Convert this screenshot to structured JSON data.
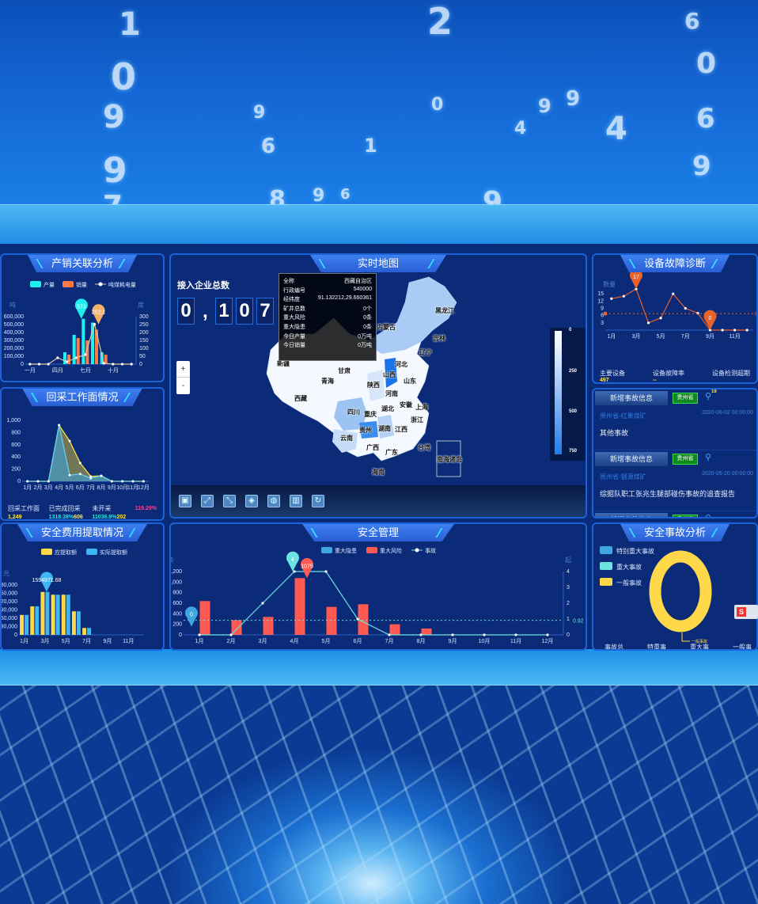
{
  "background_digits": [
    "1",
    "0",
    "9",
    "9",
    "7",
    "9",
    "6",
    "2",
    "0",
    "9",
    "9",
    "4",
    "0",
    "6",
    "9",
    "4",
    "1",
    "9",
    "8",
    "6",
    "9",
    "6",
    "7"
  ],
  "colors": {
    "panel_bg": "#0b2a78",
    "panel_border": "#1b63d6",
    "title_bg": "#3d7ff0",
    "accent_cyan": "#1ef0f0",
    "accent_orange": "#ff7a45",
    "yellow": "#ffd84a",
    "sky": "#3fb6f2",
    "red": "#ff5a52",
    "teal": "#6be3e0",
    "line_orange": "#e8622a"
  },
  "production_sales": {
    "title": "产销关联分析",
    "chart_data": {
      "type": "bar+line",
      "categories": [
        "一月",
        "二月",
        "三月",
        "四月",
        "五月",
        "六月",
        "七月",
        "八月",
        "九月",
        "十月",
        "十一月",
        "十二月"
      ],
      "tick_labels": [
        "一月",
        "",
        "",
        "四月",
        "",
        "",
        "七月",
        "",
        "",
        "十月",
        "",
        ""
      ],
      "ylabel": "吨",
      "y2label": "度",
      "ylim": [
        0,
        600000
      ],
      "y2lim": [
        0,
        300
      ],
      "yticks": [
        0,
        100000,
        200000,
        300000,
        400000,
        500000,
        600000
      ],
      "y2ticks": [
        0,
        50,
        100,
        150,
        200,
        250,
        300
      ],
      "bar_series": [
        {
          "name": "产量",
          "color": "#1ef0f0",
          "values": [
            0,
            0,
            0,
            0,
            150000,
            370000,
            573000,
            525000,
            150000,
            0,
            0,
            0
          ]
        },
        {
          "name": "销量",
          "color": "#ff7a45",
          "values": [
            0,
            0,
            0,
            0,
            120000,
            330000,
            300000,
            435000,
            120000,
            0,
            0,
            0
          ]
        }
      ],
      "line_series": [
        {
          "name": "吨煤耗电量",
          "color": "#e0c9a0",
          "axis": "right",
          "values": [
            0,
            0,
            0,
            40,
            15,
            40,
            60,
            252.1,
            5,
            0,
            0,
            0
          ]
        }
      ],
      "pins": [
        {
          "series": 0,
          "index": 6,
          "label": "573",
          "color": "#1ef0f0"
        },
        {
          "series": "line",
          "index": 7,
          "label": "252.1",
          "color": "#f5b06a"
        }
      ],
      "legend": "top"
    }
  },
  "mining_face": {
    "title": "回采工作面情况",
    "chart_data": {
      "type": "area",
      "categories": [
        "1月",
        "2月",
        "3月",
        "4月",
        "5月",
        "6月",
        "7月",
        "8月",
        "9月",
        "10月",
        "11月",
        "12月"
      ],
      "ylim": [
        0,
        1000
      ],
      "yticks": [
        0,
        200,
        400,
        600,
        800,
        1000
      ],
      "series": [
        {
          "color": "#ffe14a",
          "values": [
            0,
            0,
            0,
            920,
            660,
            300,
            80,
            90,
            0,
            0,
            0,
            0
          ]
        },
        {
          "color": "#5fd0e8",
          "values": [
            0,
            0,
            0,
            920,
            100,
            120,
            50,
            90,
            0,
            0,
            0,
            0
          ]
        }
      ]
    },
    "stats": [
      {
        "label": "回采工作面",
        "values": [
          {
            "text": "1,249",
            "color": "#ffe84a"
          }
        ]
      },
      {
        "label": "已完成回采",
        "values": [
          {
            "text": "1318.38%",
            "color": "#2fe0e0"
          },
          {
            "text": "606",
            "color": "#ffe84a"
          }
        ]
      },
      {
        "label": "未开采",
        "values": [
          {
            "text": "11036.9%",
            "color": "#2fe0e0"
          },
          {
            "text": "202",
            "color": "#ffe84a"
          }
        ]
      },
      {
        "label": "",
        "values": [
          {
            "text": "119.29%",
            "color": "#ff3d8b"
          }
        ]
      }
    ]
  },
  "safety_cost": {
    "title": "安全费用提取情况",
    "chart_data": {
      "type": "bar",
      "categories": [
        "1月",
        "2月",
        "3月",
        "4月",
        "5月",
        "6月",
        "7月",
        "8月",
        "9月",
        "10月",
        "11月",
        "12月"
      ],
      "tick_labels": [
        "1月",
        "",
        "3月",
        "",
        "5月",
        "",
        "7月",
        "",
        "9月",
        "",
        "11月",
        ""
      ],
      "ylabel": "元",
      "ylim": [
        0,
        180000
      ],
      "yticks": [
        0,
        30000,
        60000,
        90000,
        120000,
        150000,
        180000
      ],
      "series": [
        {
          "name": "应提取额",
          "color": "#ffd84a",
          "values": [
            72000,
            103000,
            155000,
            145000,
            145000,
            85000,
            25000,
            0,
            0,
            0,
            0,
            0
          ]
        },
        {
          "name": "实际提取额",
          "color": "#3fb6f2",
          "values": [
            72000,
            103000,
            155000,
            145000,
            145000,
            85000,
            25000,
            0,
            0,
            0,
            0,
            0
          ]
        }
      ],
      "pin_label": "1594971.68",
      "legend": "top"
    }
  },
  "realtime_map": {
    "title": "实时地图",
    "counter_label": "接入企业总数",
    "counter_digits": [
      "0",
      "1",
      "0",
      "7"
    ],
    "counter_separator": ",",
    "tooltip": [
      {
        "k": "全称",
        "v": "西藏自治区"
      },
      {
        "k": "行政编号",
        "v": "540000"
      },
      {
        "k": "经纬度",
        "v": "91.132212,29.660361"
      },
      {
        "k": "矿井总数",
        "v": "0个"
      },
      {
        "k": "重大风险",
        "v": "0条"
      },
      {
        "k": "重大隐患",
        "v": "0条"
      },
      {
        "k": "今日产量",
        "v": "0万吨"
      },
      {
        "k": "今日销量",
        "v": "0万吨"
      }
    ],
    "zoom_in": "+",
    "zoom_out": "-",
    "scale_labels": [
      "0",
      "250",
      "500",
      "750"
    ],
    "provinces": [
      "黑龙江",
      "内蒙古",
      "吉林",
      "辽宁",
      "新疆",
      "甘肃",
      "青海",
      "陕西",
      "山西",
      "河北",
      "山东",
      "河南",
      "西藏",
      "四川",
      "重庆",
      "湖北",
      "安徽",
      "上海",
      "浙江",
      "贵州",
      "湖南",
      "江西",
      "云南",
      "广西",
      "广东",
      "台湾",
      "海南",
      "南海诸岛"
    ],
    "toolbar_icons": [
      "fullscreen-icon",
      "expand-icon",
      "collapse-icon",
      "bag-icon",
      "globe-icon",
      "building-icon",
      "refresh-icon"
    ],
    "toolbar_glyphs": [
      "▣",
      "⤢",
      "⤡",
      "◈",
      "◍",
      "▥",
      "↻"
    ]
  },
  "safety_mgmt": {
    "title": "安全管理",
    "chart_data": {
      "type": "bar+line",
      "categories": [
        "1月",
        "2月",
        "3月",
        "4月",
        "5月",
        "6月",
        "7月",
        "8月",
        "9月",
        "10月",
        "11月",
        "12月"
      ],
      "ylabel": "条",
      "y2label": "起",
      "ylim": [
        0,
        1200
      ],
      "y2lim": [
        0,
        4
      ],
      "yticks": [
        0,
        200,
        400,
        600,
        800,
        1000,
        1200
      ],
      "y2ticks": [
        0,
        1,
        2,
        3,
        4
      ],
      "bar_series": [
        {
          "name": "重大隐患",
          "color": "#3fa6e0",
          "values": [
            0,
            0,
            0,
            0,
            0,
            0,
            0,
            0,
            0,
            0,
            0,
            0
          ]
        },
        {
          "name": "重大风险",
          "color": "#ff5a52",
          "values": [
            640,
            280,
            340,
            1075,
            530,
            580,
            200,
            120,
            0,
            0,
            0,
            0
          ]
        }
      ],
      "line_series": [
        {
          "name": "事故",
          "color": "#6be3e0",
          "axis": "right",
          "values": [
            0,
            0,
            2,
            4,
            4,
            1,
            0,
            0,
            0,
            0,
            0,
            0
          ]
        }
      ],
      "average": {
        "value": 0.92,
        "label": "0.92"
      },
      "pins": [
        {
          "label": "0",
          "color": "#3fa6e0"
        },
        {
          "label": "4",
          "color": "#6be3e0"
        },
        {
          "label": "1075",
          "color": "#ff5a52"
        }
      ],
      "legend": "top"
    }
  },
  "equipment": {
    "title": "设备故障诊断",
    "chart_data": {
      "type": "line",
      "categories": [
        "1月",
        "2月",
        "3月",
        "4月",
        "5月",
        "6月",
        "7月",
        "8月",
        "9月",
        "10月",
        "11月",
        "12月"
      ],
      "tick_labels": [
        "1月",
        "",
        "3月",
        "",
        "5月",
        "",
        "7月",
        "",
        "9月",
        "",
        "11月",
        ""
      ],
      "ylabel": "数量",
      "ylim": [
        0,
        18
      ],
      "yticks": [
        3,
        6,
        9,
        12,
        15
      ],
      "series": [
        {
          "color": "#e8622a",
          "values": [
            13,
            14,
            17,
            3,
            5,
            15,
            9,
            7,
            0,
            0,
            0,
            0
          ]
        }
      ],
      "average": {
        "value": 6.8,
        "label": "6.8"
      },
      "pins": [
        {
          "label": "17"
        },
        {
          "label": "0"
        }
      ]
    },
    "stats": [
      {
        "label": "主要设备",
        "value": "497"
      },
      {
        "label": "设备故障率",
        "value": "--"
      },
      {
        "label": "设备检测超期",
        "value": ""
      }
    ]
  },
  "accidents": {
    "items": [
      {
        "header": "新增事故信息",
        "tag": "贵州省",
        "count": "19",
        "mine": "贵州省-红果煤矿",
        "date": "2020-06-02 00:00:00",
        "desc": "其他事故"
      },
      {
        "header": "新增事故信息",
        "tag": "贵州省",
        "count": "",
        "mine": "贵州省-钢源煤矿",
        "date": "2020-05-20 00:00:00",
        "desc": "综掘队职工张兆生腿部碰伤事故的追查报告"
      },
      {
        "header": "新增事故信息",
        "tag": "贵州省",
        "count": "",
        "mine": "",
        "date": "",
        "desc": ""
      }
    ]
  },
  "accident_analysis": {
    "title": "安全事故分析",
    "chart_data": {
      "type": "pie",
      "slices": [
        {
          "name": "特别重大事故",
          "color": "#3fa6e0",
          "value": 0
        },
        {
          "name": "重大事故",
          "color": "#6be3e0",
          "value": 0
        },
        {
          "name": "一般事故",
          "color": "#ffd84a",
          "value": 1
        }
      ],
      "slice_label": "一般事故",
      "legend": "left"
    },
    "stats": [
      "事故总",
      "特重事",
      "重大事",
      "一般事"
    ]
  },
  "floating_widget": "S"
}
